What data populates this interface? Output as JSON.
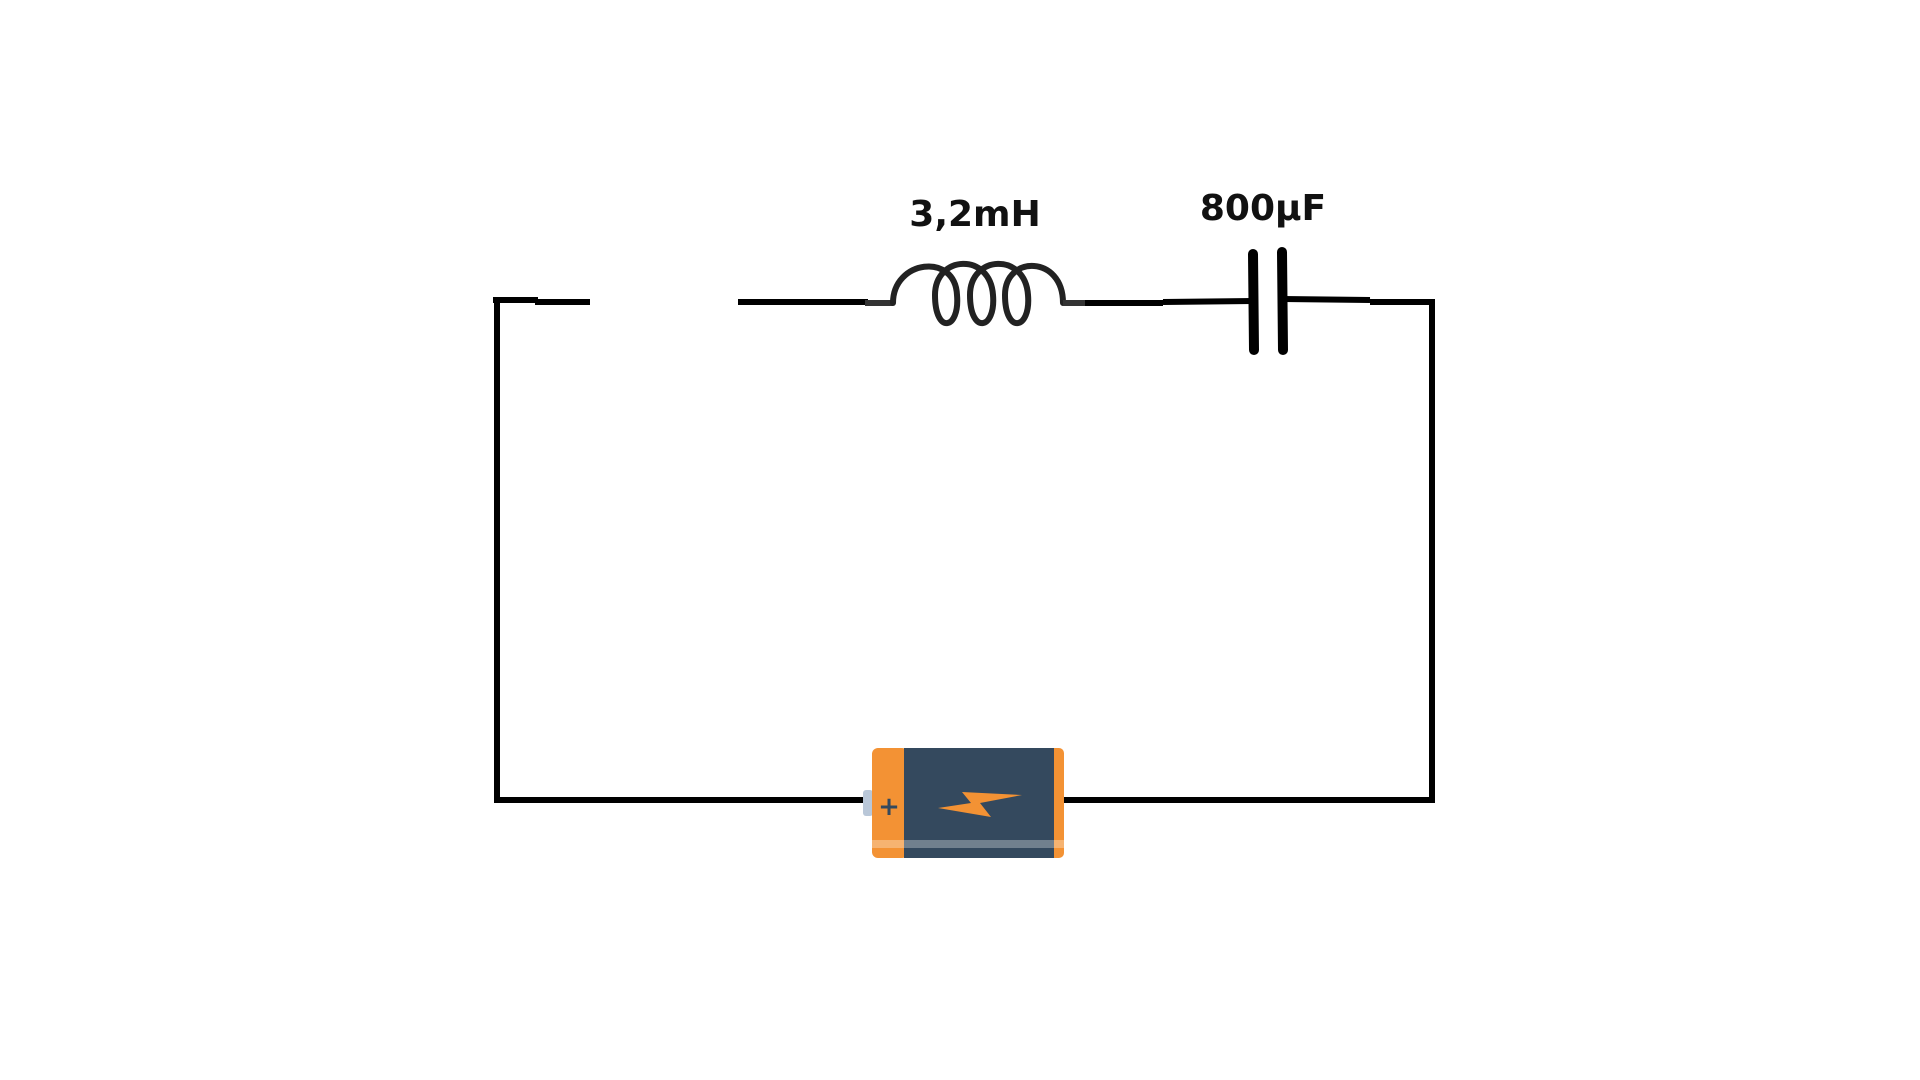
{
  "circuit": {
    "inductor": {
      "label": "3,2mH",
      "value": 3.2,
      "unit": "mH"
    },
    "capacitor": {
      "label": "800µF",
      "value": 800,
      "unit": "µF"
    },
    "switch": {
      "state": "open"
    },
    "battery": {
      "plus_label": "+",
      "icon": "lightning-bolt-icon",
      "colors": {
        "body": "#34495E",
        "terminal": "#F39234",
        "bolt": "#F39234",
        "cap": "#B9C7D8"
      }
    },
    "wire_color": "#000000"
  }
}
